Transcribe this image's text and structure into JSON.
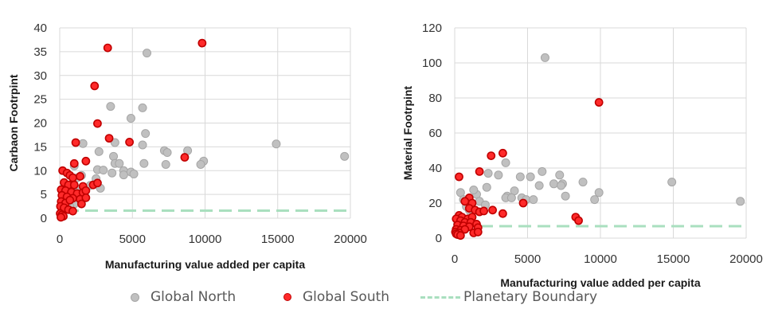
{
  "legend": {
    "north": "Global North",
    "south": "Global South",
    "boundary": "Planetary Boundary"
  },
  "colors": {
    "north_fill": "#c0c0c0",
    "north_stroke": "#a6a6a6",
    "south_fill": "#ff2a2a",
    "south_stroke": "#c00000",
    "boundary": "#a9dfbf",
    "grid": "#d9d9d9"
  },
  "chart_data": [
    {
      "type": "scatter",
      "title": "",
      "xlabel": "Manufacturing value added per capita",
      "ylabel": "Carbaon Footrpint",
      "xlim": [
        0,
        20000
      ],
      "ylim": [
        0,
        40
      ],
      "xticks": [
        "0",
        "5000",
        "10000",
        "15000",
        "20000"
      ],
      "yticks": [
        "0",
        "5",
        "10",
        "15",
        "20",
        "25",
        "30",
        "35",
        "40"
      ],
      "grid": true,
      "boundary": 1.6,
      "series": [
        {
          "name": "Global North",
          "points": [
            [
              6000,
              34.7
            ],
            [
              4900,
              21
            ],
            [
              5700,
              23.2
            ],
            [
              3500,
              23.5
            ],
            [
              5900,
              17.8
            ],
            [
              3800,
              15.9
            ],
            [
              1600,
              15.7
            ],
            [
              5700,
              15.4
            ],
            [
              14900,
              15.6
            ],
            [
              19600,
              13
            ],
            [
              2700,
              14
            ],
            [
              7200,
              14.2
            ],
            [
              7400,
              13.8
            ],
            [
              8800,
              14.2
            ],
            [
              3700,
              13
            ],
            [
              9900,
              12
            ],
            [
              9700,
              11.3
            ],
            [
              5800,
              11.5
            ],
            [
              7300,
              11.3
            ],
            [
              3800,
              11.5
            ],
            [
              4100,
              11.5
            ],
            [
              2600,
              10.2
            ],
            [
              3000,
              10.1
            ],
            [
              4400,
              10
            ],
            [
              4900,
              9.7
            ],
            [
              5100,
              9.3
            ],
            [
              4400,
              9.1
            ],
            [
              3600,
              9.5
            ],
            [
              2500,
              8.3
            ],
            [
              1500,
              9
            ],
            [
              1200,
              8.5
            ],
            [
              2100,
              6.9
            ],
            [
              2800,
              6.3
            ],
            [
              1300,
              6.1
            ],
            [
              900,
              5.5
            ],
            [
              600,
              5
            ],
            [
              400,
              4.5
            ],
            [
              300,
              3.5
            ],
            [
              800,
              3.3
            ],
            [
              1000,
              3
            ],
            [
              200,
              2.2
            ],
            [
              500,
              2.3
            ],
            [
              700,
              2.4
            ],
            [
              1000,
              11
            ]
          ]
        },
        {
          "name": "Global South",
          "points": [
            [
              3300,
              35.8
            ],
            [
              9800,
              36.8
            ],
            [
              2400,
              27.8
            ],
            [
              2600,
              19.9
            ],
            [
              3400,
              16.8
            ],
            [
              4800,
              16
            ],
            [
              1800,
              12
            ],
            [
              8600,
              12.8
            ],
            [
              1000,
              11.5
            ],
            [
              1100,
              15.9
            ],
            [
              200,
              10
            ],
            [
              500,
              9.5
            ],
            [
              700,
              9
            ],
            [
              900,
              8.5
            ],
            [
              1400,
              8.8
            ],
            [
              300,
              7.5
            ],
            [
              600,
              7
            ],
            [
              1000,
              7
            ],
            [
              1600,
              6.7
            ],
            [
              2300,
              7
            ],
            [
              2600,
              7.4
            ],
            [
              100,
              6
            ],
            [
              400,
              5.8
            ],
            [
              800,
              5.5
            ],
            [
              1200,
              5.2
            ],
            [
              1600,
              5.4
            ],
            [
              1800,
              5.8
            ],
            [
              150,
              4.8
            ],
            [
              500,
              4.5
            ],
            [
              900,
              4.2
            ],
            [
              1400,
              4
            ],
            [
              1800,
              4.3
            ],
            [
              100,
              3.5
            ],
            [
              400,
              3.2
            ],
            [
              700,
              3.8
            ],
            [
              1500,
              3
            ],
            [
              50,
              2.5
            ],
            [
              300,
              2.2
            ],
            [
              600,
              1.8
            ],
            [
              900,
              1.5
            ],
            [
              30,
              1
            ],
            [
              150,
              0.7
            ],
            [
              250,
              0.4
            ],
            [
              80,
              0.2
            ]
          ]
        }
      ]
    },
    {
      "type": "scatter",
      "title": "",
      "xlabel": "Manufacturing value added per capita",
      "ylabel": "Material Footrpint",
      "xlim": [
        0,
        20000
      ],
      "ylim": [
        0,
        120
      ],
      "xticks": [
        "0",
        "5000",
        "10000",
        "15000",
        "20000"
      ],
      "yticks": [
        "0",
        "20",
        "40",
        "60",
        "80",
        "100",
        "120"
      ],
      "grid": true,
      "boundary": 6.8,
      "series": [
        {
          "name": "Global North",
          "points": [
            [
              6200,
              103
            ],
            [
              3500,
              43
            ],
            [
              6000,
              38
            ],
            [
              7200,
              36
            ],
            [
              2300,
              37
            ],
            [
              3000,
              36
            ],
            [
              4500,
              35
            ],
            [
              5200,
              35
            ],
            [
              8800,
              32
            ],
            [
              14900,
              32
            ],
            [
              7400,
              31
            ],
            [
              6800,
              31
            ],
            [
              5800,
              30
            ],
            [
              7300,
              30
            ],
            [
              2200,
              29
            ],
            [
              4100,
              27
            ],
            [
              1500,
              25
            ],
            [
              1300,
              27.5
            ],
            [
              9900,
              26
            ],
            [
              7600,
              24
            ],
            [
              3600,
              24
            ],
            [
              3500,
              23
            ],
            [
              3900,
              23
            ],
            [
              4600,
              23
            ],
            [
              4900,
              22
            ],
            [
              5400,
              22
            ],
            [
              9600,
              22
            ],
            [
              19600,
              21
            ],
            [
              1700,
              21
            ],
            [
              2100,
              19
            ],
            [
              400,
              26
            ],
            [
              600,
              22
            ],
            [
              800,
              18
            ],
            [
              1000,
              16
            ],
            [
              200,
              8
            ],
            [
              400,
              7
            ],
            [
              600,
              9
            ],
            [
              900,
              10
            ],
            [
              100,
              5
            ],
            [
              300,
              4
            ]
          ]
        },
        {
          "name": "Global South",
          "points": [
            [
              9900,
              77.5
            ],
            [
              3300,
              48.5
            ],
            [
              2500,
              47
            ],
            [
              300,
              35
            ],
            [
              1700,
              38
            ],
            [
              4700,
              20
            ],
            [
              8300,
              12
            ],
            [
              8500,
              10
            ],
            [
              1000,
              23
            ],
            [
              1200,
              20
            ],
            [
              2600,
              16
            ],
            [
              3300,
              14
            ],
            [
              700,
              21
            ],
            [
              1000,
              17
            ],
            [
              1400,
              16
            ],
            [
              1700,
              15
            ],
            [
              300,
              13
            ],
            [
              500,
              12
            ],
            [
              900,
              11
            ],
            [
              1200,
              12
            ],
            [
              2000,
              15.5
            ],
            [
              100,
              11
            ],
            [
              400,
              10
            ],
            [
              700,
              9
            ],
            [
              1100,
              9
            ],
            [
              1500,
              8
            ],
            [
              200,
              7.5
            ],
            [
              600,
              7
            ],
            [
              1000,
              6.5
            ],
            [
              1600,
              6
            ],
            [
              100,
              5
            ],
            [
              400,
              4.5
            ],
            [
              700,
              5
            ],
            [
              50,
              3.5
            ],
            [
              300,
              3
            ],
            [
              1300,
              3
            ],
            [
              1600,
              3.5
            ],
            [
              100,
              2.5
            ],
            [
              200,
              2
            ],
            [
              400,
              1.5
            ]
          ]
        }
      ]
    }
  ]
}
